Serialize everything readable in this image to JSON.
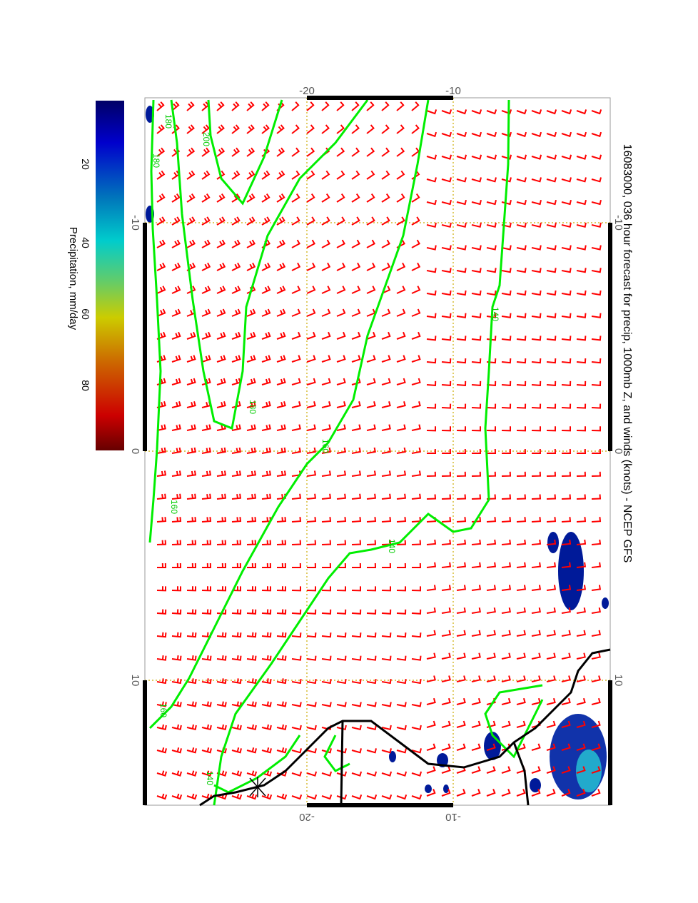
{
  "title": "16083000, 036 hour forecast for precip, 1000mb Z, and winds (knots) - NCEP GFS",
  "colorbar": {
    "label": "Precipitation, mm/day",
    "ticks": [
      "20",
      "40",
      "60",
      "80"
    ],
    "colors": [
      "#000066",
      "#0000cc",
      "#0088cc",
      "#00cccc",
      "#66cc66",
      "#cccc00",
      "#cc6600",
      "#cc0000",
      "#660000"
    ]
  },
  "axes": {
    "lat_ticks_top": [
      "-20",
      "-10"
    ],
    "lat_ticks_bottom": [
      "-20",
      "-10"
    ],
    "lon_ticks_left": [
      "-10",
      "0",
      "10"
    ],
    "lon_ticks_right": [
      "-10",
      "0",
      "10"
    ]
  },
  "contour_labels": [
    "180",
    "200",
    "180",
    "160",
    "180",
    "160",
    "140",
    "140",
    "160",
    "140"
  ],
  "colors": {
    "contour": "#00ee00",
    "barb": "#ff0000",
    "grid": "#ccaa00",
    "coast": "#000000"
  }
}
